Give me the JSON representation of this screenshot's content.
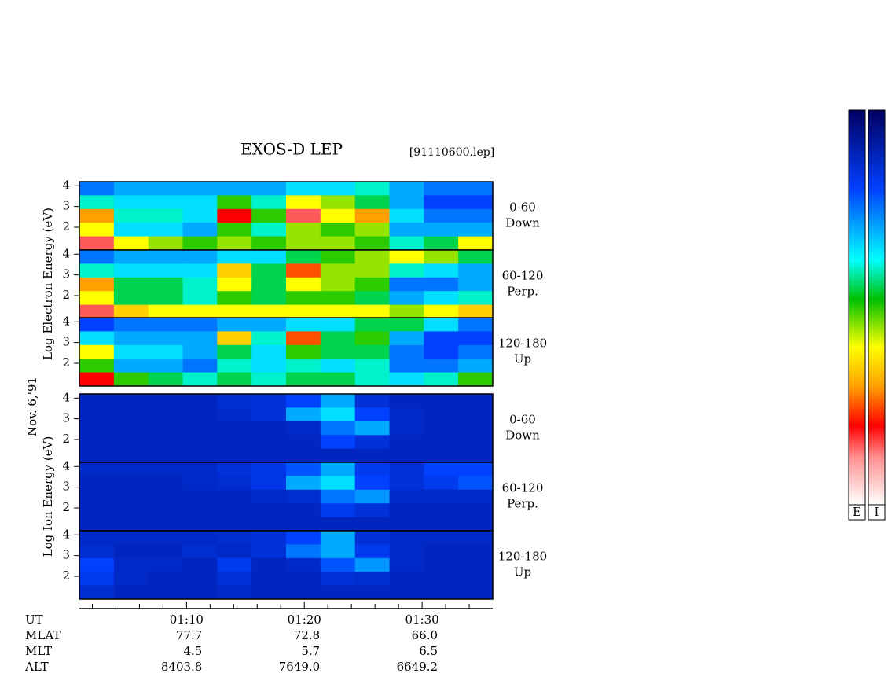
{
  "chart_data": {
    "type": "spectrogram",
    "title": "EXOS-D LEP",
    "file": "[91110600.lep]",
    "date": "Nov. 6,'91",
    "xlim": [
      60.9,
      96
    ],
    "xticks": [
      {
        "value": 70,
        "label": "01:10"
      },
      {
        "value": 80,
        "label": "01:20"
      },
      {
        "value": 90,
        "label": "01:30"
      }
    ],
    "xminor_ticks": [
      62,
      64,
      66,
      68,
      72,
      74,
      76,
      78,
      82,
      84,
      86,
      88,
      92,
      94
    ],
    "ylim": [
      0.9,
      4.2
    ],
    "yticks": [
      2,
      3,
      4
    ],
    "groups": [
      {
        "ylabel": "Log Electron Energy (eV)",
        "panels": [
          {
            "label": [
              "0-60",
              "Down"
            ],
            "intensity": [
              [
                0.25,
                0.3,
                0.3,
                0.3,
                0.3,
                0.3,
                0.35,
                0.35,
                0.4,
                0.3,
                0.25,
                0.25
              ],
              [
                0.4,
                0.35,
                0.35,
                0.35,
                0.5,
                0.4,
                0.6,
                0.55,
                0.45,
                0.3,
                0.2,
                0.2
              ],
              [
                0.7,
                0.4,
                0.4,
                0.35,
                0.8,
                0.5,
                0.85,
                0.6,
                0.7,
                0.35,
                0.25,
                0.25
              ],
              [
                0.6,
                0.35,
                0.35,
                0.3,
                0.5,
                0.4,
                0.55,
                0.5,
                0.55,
                0.3,
                0.3,
                0.3
              ],
              [
                0.85,
                0.6,
                0.55,
                0.5,
                0.55,
                0.5,
                0.55,
                0.55,
                0.5,
                0.4,
                0.45,
                0.6
              ]
            ]
          },
          {
            "label": [
              "60-120",
              "Perp."
            ],
            "intensity": [
              [
                0.25,
                0.3,
                0.3,
                0.3,
                0.35,
                0.35,
                0.45,
                0.5,
                0.55,
                0.6,
                0.55,
                0.45
              ],
              [
                0.4,
                0.35,
                0.35,
                0.35,
                0.65,
                0.45,
                0.75,
                0.55,
                0.55,
                0.4,
                0.35,
                0.3
              ],
              [
                0.7,
                0.45,
                0.45,
                0.4,
                0.6,
                0.45,
                0.6,
                0.55,
                0.5,
                0.25,
                0.25,
                0.3
              ],
              [
                0.6,
                0.45,
                0.45,
                0.4,
                0.5,
                0.45,
                0.5,
                0.5,
                0.45,
                0.3,
                0.35,
                0.4
              ],
              [
                0.85,
                0.65,
                0.6,
                0.6,
                0.6,
                0.6,
                0.6,
                0.6,
                0.6,
                0.55,
                0.6,
                0.65
              ]
            ]
          },
          {
            "label": [
              "120-180",
              "Up"
            ],
            "intensity": [
              [
                0.2,
                0.25,
                0.25,
                0.25,
                0.3,
                0.3,
                0.35,
                0.35,
                0.45,
                0.45,
                0.35,
                0.25
              ],
              [
                0.35,
                0.3,
                0.3,
                0.3,
                0.65,
                0.4,
                0.75,
                0.45,
                0.5,
                0.3,
                0.2,
                0.2
              ],
              [
                0.6,
                0.35,
                0.35,
                0.3,
                0.45,
                0.35,
                0.5,
                0.45,
                0.45,
                0.25,
                0.2,
                0.25
              ],
              [
                0.5,
                0.3,
                0.3,
                0.25,
                0.4,
                0.35,
                0.4,
                0.35,
                0.4,
                0.25,
                0.25,
                0.3
              ],
              [
                0.8,
                0.5,
                0.45,
                0.4,
                0.45,
                0.4,
                0.45,
                0.45,
                0.4,
                0.35,
                0.4,
                0.5
              ]
            ]
          }
        ]
      },
      {
        "ylabel": "Log Ion Energy (eV)",
        "panels": [
          {
            "label": [
              "0-60",
              "Down"
            ],
            "intensity": [
              [
                0.12,
                0.12,
                0.12,
                0.12,
                0.14,
                0.15,
                0.2,
                0.3,
                0.15,
                0.12,
                0.12,
                0.12
              ],
              [
                0.12,
                0.12,
                0.12,
                0.12,
                0.13,
                0.15,
                0.3,
                0.35,
                0.2,
                0.13,
                0.12,
                0.12
              ],
              [
                0.12,
                0.12,
                0.12,
                0.12,
                0.12,
                0.12,
                0.13,
                0.25,
                0.3,
                0.13,
                0.12,
                0.12
              ],
              [
                0.12,
                0.12,
                0.12,
                0.12,
                0.12,
                0.12,
                0.12,
                0.2,
                0.15,
                0.12,
                0.12,
                0.12
              ],
              [
                0.12,
                0.12,
                0.12,
                0.12,
                0.12,
                0.12,
                0.12,
                0.12,
                0.12,
                0.12,
                0.12,
                0.12
              ]
            ]
          },
          {
            "label": [
              "60-120",
              "Perp."
            ],
            "intensity": [
              [
                0.13,
                0.13,
                0.13,
                0.13,
                0.15,
                0.17,
                0.22,
                0.3,
                0.18,
                0.15,
                0.2,
                0.2
              ],
              [
                0.12,
                0.12,
                0.12,
                0.13,
                0.14,
                0.17,
                0.3,
                0.35,
                0.2,
                0.15,
                0.18,
                0.22
              ],
              [
                0.12,
                0.12,
                0.12,
                0.12,
                0.12,
                0.13,
                0.14,
                0.25,
                0.28,
                0.13,
                0.13,
                0.13
              ],
              [
                0.12,
                0.12,
                0.12,
                0.12,
                0.12,
                0.12,
                0.12,
                0.18,
                0.15,
                0.12,
                0.12,
                0.12
              ],
              [
                0.12,
                0.12,
                0.12,
                0.12,
                0.12,
                0.12,
                0.12,
                0.12,
                0.12,
                0.12,
                0.12,
                0.12
              ]
            ]
          },
          {
            "label": [
              "120-180",
              "Up"
            ],
            "intensity": [
              [
                0.13,
                0.13,
                0.13,
                0.13,
                0.14,
                0.15,
                0.2,
                0.3,
                0.15,
                0.13,
                0.13,
                0.13
              ],
              [
                0.14,
                0.12,
                0.12,
                0.14,
                0.13,
                0.15,
                0.25,
                0.3,
                0.18,
                0.13,
                0.12,
                0.12
              ],
              [
                0.2,
                0.13,
                0.13,
                0.12,
                0.18,
                0.12,
                0.13,
                0.22,
                0.28,
                0.13,
                0.12,
                0.12
              ],
              [
                0.18,
                0.13,
                0.12,
                0.12,
                0.15,
                0.12,
                0.12,
                0.15,
                0.14,
                0.12,
                0.12,
                0.12
              ],
              [
                0.14,
                0.12,
                0.12,
                0.12,
                0.13,
                0.12,
                0.12,
                0.12,
                0.12,
                0.12,
                0.12,
                0.12
              ]
            ]
          }
        ]
      }
    ],
    "ut_label": "UT",
    "ephemeris": [
      {
        "label": "MLAT",
        "values": [
          "77.7",
          "72.8",
          "66.0"
        ]
      },
      {
        "label": "MLT",
        "values": [
          "4.5",
          "5.7",
          "6.5"
        ]
      },
      {
        "label": "ALT",
        "values": [
          "8403.8",
          "7649.0",
          "6649.2"
        ]
      }
    ],
    "colorbars": [
      "E",
      "I"
    ]
  }
}
